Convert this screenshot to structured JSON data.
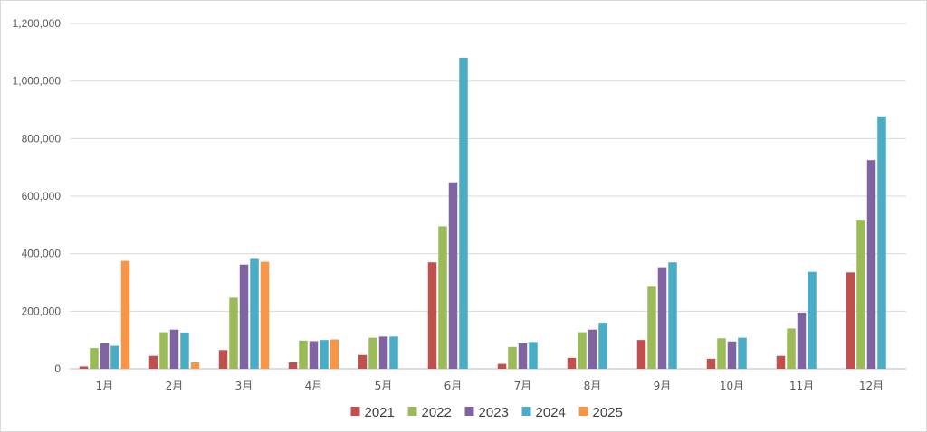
{
  "chart_data": {
    "type": "bar",
    "title": "",
    "xlabel": "",
    "ylabel": "",
    "ylim": [
      0,
      1200000
    ],
    "yticks": [
      0,
      200000,
      400000,
      600000,
      800000,
      1000000,
      1200000
    ],
    "ytick_labels": [
      "0",
      "200,000",
      "400,000",
      "600,000",
      "800,000",
      "1,000,000",
      "1,200,000"
    ],
    "grid": true,
    "legend_position": "bottom",
    "categories": [
      "1月",
      "2月",
      "3月",
      "4月",
      "5月",
      "6月",
      "7月",
      "8月",
      "9月",
      "10月",
      "11月",
      "12月"
    ],
    "series": [
      {
        "name": "2021",
        "color": "#c0504d",
        "values": [
          8000,
          45000,
          65000,
          22000,
          48000,
          370000,
          17000,
          38000,
          100000,
          35000,
          45000,
          335000
        ]
      },
      {
        "name": "2022",
        "color": "#9bbb59",
        "values": [
          72000,
          127000,
          247000,
          98000,
          108000,
          495000,
          76000,
          127000,
          285000,
          106000,
          140000,
          518000
        ]
      },
      {
        "name": "2023",
        "color": "#8064a2",
        "values": [
          88000,
          136000,
          362000,
          96000,
          112000,
          648000,
          88000,
          136000,
          353000,
          95000,
          195000,
          725000
        ]
      },
      {
        "name": "2024",
        "color": "#4bacc6",
        "values": [
          80000,
          126000,
          382000,
          100000,
          112000,
          1081000,
          93000,
          160000,
          370000,
          108000,
          337000,
          877000
        ]
      },
      {
        "name": "2025",
        "color": "#f79646",
        "values": [
          375000,
          22000,
          372000,
          102000,
          null,
          null,
          null,
          null,
          null,
          null,
          null,
          null
        ]
      }
    ]
  }
}
